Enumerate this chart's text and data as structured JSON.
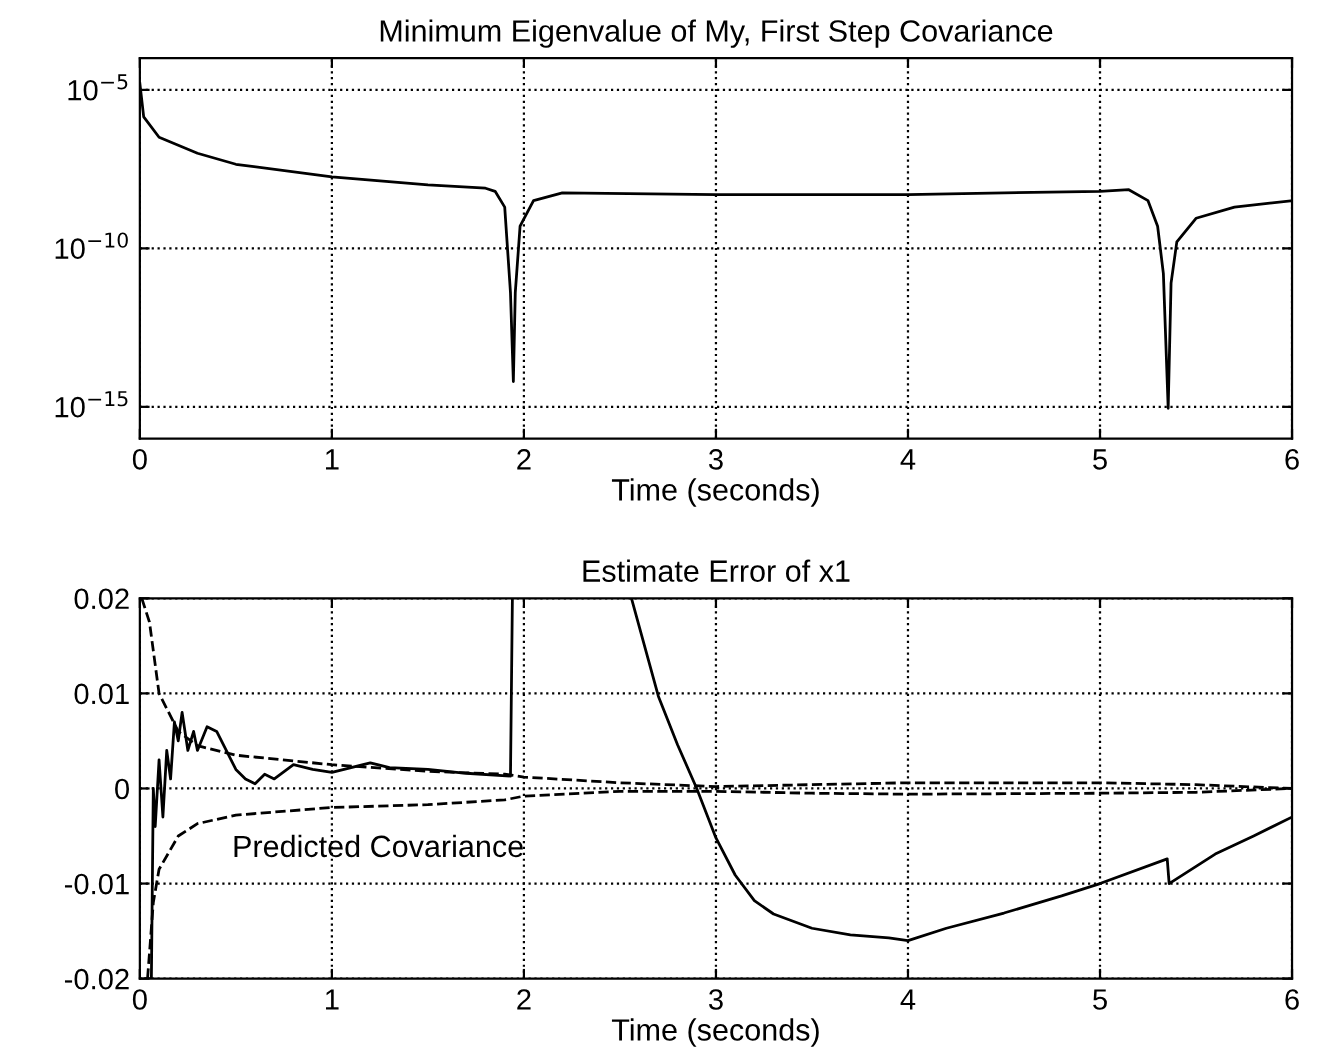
{
  "chart_data": [
    {
      "type": "line",
      "title": "Minimum Eigenvalue of My, First Step Covariance",
      "xlabel": "Time (seconds)",
      "log": "y",
      "grid": true,
      "xlim": [
        0,
        6
      ],
      "xticks": [
        0,
        1,
        2,
        3,
        4,
        5,
        6
      ],
      "ylim": [
        1e-16,
        0.0001
      ],
      "yticks": [
        {
          "value": 1e-15,
          "label": "10$^{−15}$"
        },
        {
          "value": 1e-10,
          "label": "10$^{−10}$"
        },
        {
          "value": 1e-05,
          "label": "10$^{−5}$"
        }
      ],
      "series": [
        {
          "color": "#000000",
          "line_style": "solid",
          "x": [
            0,
            0.02,
            0.1,
            0.3,
            0.5,
            1.0,
            1.5,
            1.8,
            1.85,
            1.9,
            1.93,
            1.945,
            1.955,
            1.98,
            2.05,
            2.2,
            3.0,
            4.0,
            5.0,
            5.15,
            5.25,
            5.3,
            5.33,
            5.355,
            5.37,
            5.4,
            5.5,
            5.7,
            6.0
          ],
          "values": [
            1.6e-05,
            1.4e-06,
            3.2e-07,
            1e-07,
            4.5e-08,
            1.8e-08,
            1e-08,
            7.9e-09,
            6.3e-09,
            2e-09,
            4e-12,
            6.3e-15,
            4e-12,
            5e-10,
            3.2e-09,
            5.6e-09,
            5e-09,
            5e-09,
            6.3e-09,
            7.1e-09,
            3.2e-09,
            5e-10,
            1.6e-11,
            9e-16,
            8e-12,
            1.6e-10,
            8.9e-10,
            2e-09,
            3.2e-09
          ]
        }
      ]
    },
    {
      "type": "line",
      "title": "Estimate Error of x1",
      "xlabel": "Time (seconds)",
      "grid": true,
      "xlim": [
        0,
        6
      ],
      "xticks": [
        0,
        1,
        2,
        3,
        4,
        5,
        6
      ],
      "ylim": [
        -0.02,
        0.02
      ],
      "yticks": [
        -0.02,
        -0.01,
        0,
        0.01,
        0.02
      ],
      "annotations": [
        "Predicted Covariance"
      ],
      "series": [
        {
          "color": "#000000",
          "line_style": "solid",
          "x": [
            0.03,
            0.06,
            0.07,
            0.08,
            0.1,
            0.12,
            0.14,
            0.16,
            0.18,
            0.2,
            0.22,
            0.25,
            0.28,
            0.3,
            0.35,
            0.4,
            0.45,
            0.5,
            0.55,
            0.6,
            0.65,
            0.7,
            0.8,
            0.9,
            1.0,
            1.1,
            1.2,
            1.3,
            1.5,
            1.7,
            1.93,
            1.94,
            2.2,
            2.56,
            2.7,
            2.8,
            2.9,
            3.0,
            3.1,
            3.2,
            3.3,
            3.5,
            3.7,
            3.9,
            4.0,
            4.2,
            4.5,
            4.8,
            5.0,
            5.35,
            5.36,
            5.6,
            5.8,
            6.0
          ],
          "values": [
            -0.02,
            -0.02,
            0.0,
            -0.004,
            0.003,
            -0.003,
            0.004,
            0.001,
            0.007,
            0.005,
            0.008,
            0.004,
            0.006,
            0.004,
            0.0065,
            0.006,
            0.004,
            0.002,
            0.001,
            0.0005,
            0.0015,
            0.001,
            0.0025,
            0.002,
            0.0017,
            0.0022,
            0.0027,
            0.0022,
            0.002,
            0.0016,
            0.0013,
            0.02,
            null,
            0.02,
            0.0097,
            0.0046,
            0.0,
            -0.0052,
            -0.0091,
            -0.0118,
            -0.0132,
            -0.0147,
            -0.0154,
            -0.0157,
            -0.016,
            -0.0147,
            -0.0131,
            -0.0113,
            -0.01,
            -0.0074,
            -0.01,
            -0.0069,
            -0.005,
            -0.003
          ]
        },
        {
          "color": "#000000",
          "line_style": "dashed",
          "x": [
            0.01,
            0.05,
            0.1,
            0.2,
            0.3,
            0.5,
            1.0,
            1.5,
            1.9,
            2.0,
            2.5,
            3.0,
            3.5,
            4.0,
            5.0,
            5.5,
            6.0
          ],
          "values": [
            0.02,
            0.0175,
            0.01,
            0.006,
            0.0045,
            0.0035,
            0.0025,
            0.0018,
            0.0015,
            0.0012,
            0.0006,
            0.0002,
            0.0004,
            0.0006,
            0.0006,
            0.0004,
            0.0
          ]
        },
        {
          "color": "#000000",
          "line_style": "dashed",
          "x": [
            0.04,
            0.07,
            0.1,
            0.2,
            0.3,
            0.5,
            1.0,
            1.5,
            1.9,
            2.0,
            2.5,
            3.0,
            3.5,
            4.0,
            5.0,
            5.5,
            6.0
          ],
          "values": [
            -0.02,
            -0.012,
            -0.0085,
            -0.005,
            -0.0037,
            -0.0028,
            -0.002,
            -0.0017,
            -0.0012,
            -0.0008,
            -0.0003,
            -0.0003,
            -0.0005,
            -0.0006,
            -0.0005,
            -0.0004,
            0.0
          ]
        }
      ]
    }
  ]
}
